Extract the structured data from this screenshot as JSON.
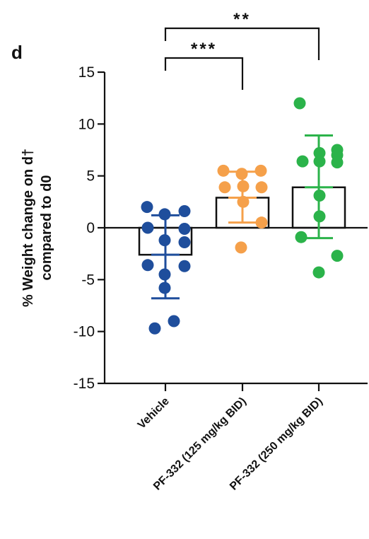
{
  "panel_label": "d",
  "chart_data": {
    "type": "bar",
    "title": "",
    "xlabel": "",
    "ylabel_lines": [
      "% Weight change on d†",
      "compared to d0"
    ],
    "ylim": [
      -15,
      15
    ],
    "yticks": [
      15,
      10,
      5,
      0,
      -5,
      -10,
      -15
    ],
    "ytick_labels": [
      "15",
      "10",
      "5",
      "0",
      "-5",
      "-10",
      "-15"
    ],
    "grid": false,
    "categories": [
      "Vehicle",
      "PF-332 (125 mg/kg BID)",
      "PF-332 (250 mg/kg BID)"
    ],
    "series": [
      {
        "category": "Vehicle",
        "color": "#1f4e9c",
        "mean": -2.6,
        "error_low": -6.8,
        "error_high": 1.2,
        "points": [
          2.0,
          1.3,
          1.6,
          0.0,
          -0.1,
          -1.2,
          -1.4,
          -3.6,
          -3.7,
          -4.5,
          -5.8,
          -9.0,
          -9.7
        ]
      },
      {
        "category": "PF-332 (125 mg/kg BID)",
        "color": "#f5a04a",
        "mean": 2.9,
        "error_low": 0.5,
        "error_high": 5.4,
        "points": [
          5.5,
          5.2,
          5.5,
          3.9,
          4.0,
          3.9,
          2.5,
          0.5,
          -1.9
        ]
      },
      {
        "category": "PF-332 (250 mg/kg BID)",
        "color": "#2bb34a",
        "mean": 3.9,
        "error_low": -1.0,
        "error_high": 8.9,
        "points": [
          12.0,
          7.2,
          7.0,
          7.5,
          6.4,
          6.4,
          6.3,
          3.1,
          1.1,
          -0.9,
          -2.7,
          -4.3
        ]
      }
    ],
    "significance": [
      {
        "from": 0,
        "to": 1,
        "label": "***"
      },
      {
        "from": 0,
        "to": 2,
        "label": "**"
      }
    ]
  }
}
